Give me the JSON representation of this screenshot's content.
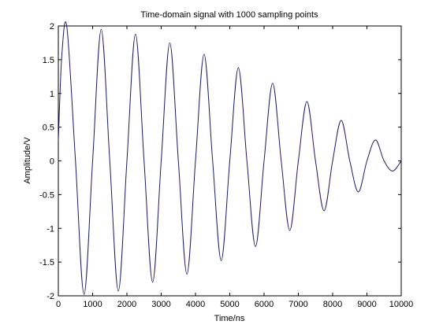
{
  "chart_data": {
    "type": "line",
    "title": "Time-domain signal with 1000 sampling points",
    "xlabel": "Time/ns",
    "ylabel": "Amplitude/V",
    "xlim": [
      0,
      10000
    ],
    "ylim": [
      -2,
      2
    ],
    "grid": false,
    "x_ticks": [
      0,
      1000,
      2000,
      3000,
      4000,
      5000,
      6000,
      7000,
      8000,
      9000,
      10000
    ],
    "y_ticks": [
      -2,
      -1.5,
      -1,
      -0.5,
      0,
      0.5,
      1,
      1.5,
      2
    ],
    "x_tick_labels": [
      "0",
      "1000",
      "2000",
      "3000",
      "4000",
      "5000",
      "6000",
      "7000",
      "8000",
      "9000",
      "10000"
    ],
    "y_tick_labels": [
      "-2",
      "-1.5",
      "-1",
      "-0.5",
      "0",
      "0.5",
      "1",
      "1.5",
      "2"
    ],
    "line_color": "#1a1a6e",
    "series": [
      {
        "x": [
          0,
          100,
          250,
          500,
          750,
          1000,
          1250,
          1500,
          1750,
          2000,
          2250,
          2500,
          2750,
          3000,
          3250,
          3500,
          3750,
          4000,
          4250,
          4500,
          4750,
          5000,
          5250,
          5500,
          5750,
          6000,
          6250,
          6500,
          6750,
          7000,
          7250,
          7500,
          7750,
          8000,
          8250,
          8500,
          8750,
          9000,
          9250,
          9500,
          9750,
          10000
        ],
        "values": [
          0.3,
          1.55,
          1.98,
          0,
          -1.98,
          0,
          1.95,
          0,
          -1.93,
          0,
          1.88,
          0,
          -1.8,
          0,
          1.75,
          0,
          -1.68,
          0,
          1.58,
          0,
          -1.48,
          0,
          1.38,
          0,
          -1.27,
          0,
          1.15,
          0,
          -1.03,
          0,
          0.88,
          0,
          -0.74,
          0,
          0.6,
          0,
          -0.46,
          0,
          0.31,
          0,
          -0.15,
          0
        ]
      }
    ]
  }
}
